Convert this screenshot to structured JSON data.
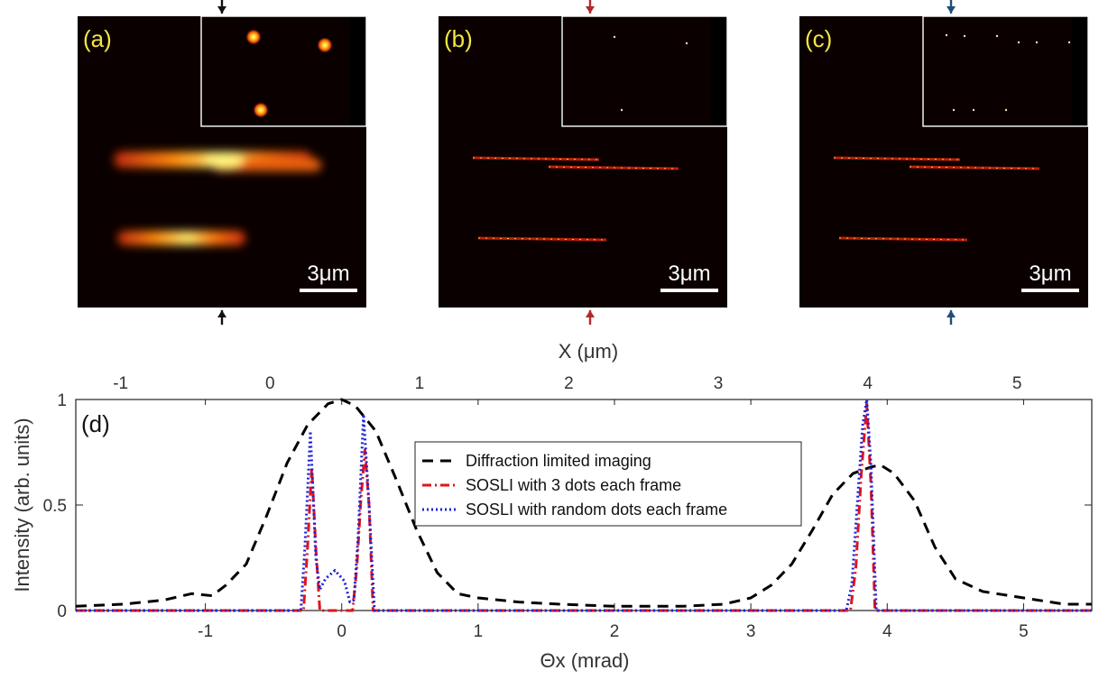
{
  "panels": [
    {
      "label": "(a)",
      "scale_bar": "3μm",
      "arrow_color": "#111111",
      "style": "blur",
      "inset_spot_count": 3
    },
    {
      "label": "(b)",
      "scale_bar": "3μm",
      "arrow_color": "#b0282a",
      "style": "sharp",
      "inset_spot_count": 3
    },
    {
      "label": "(c)",
      "scale_bar": "3μm",
      "arrow_color": "#1f4e79",
      "style": "sharp",
      "inset_spot_count": 9
    }
  ],
  "chart_data": {
    "type": "line",
    "panel_label": "(d)",
    "xlabel": "Θx (mrad)",
    "x2label": "X (μm)",
    "ylabel": "Intensity (arb. units)",
    "xlim": [
      -1.95,
      5.5
    ],
    "ylim": [
      0,
      1
    ],
    "x_ticks": [
      -1,
      0,
      1,
      2,
      3,
      4,
      5
    ],
    "x2_ticks": [
      -1,
      0,
      1,
      2,
      3,
      4,
      5
    ],
    "x2_range": [
      -1.3,
      5.5
    ],
    "y_ticks": [
      0,
      0.5,
      1
    ],
    "legend_position": "top-center",
    "series": [
      {
        "name": "Diffraction limited imaging",
        "color": "#000000",
        "dash": "dashed",
        "x": [
          -1.95,
          -1.6,
          -1.3,
          -1.1,
          -0.95,
          -0.85,
          -0.7,
          -0.55,
          -0.4,
          -0.25,
          -0.1,
          0.0,
          0.1,
          0.25,
          0.4,
          0.55,
          0.7,
          0.85,
          1.0,
          1.3,
          1.6,
          2.0,
          2.5,
          2.8,
          3.0,
          3.15,
          3.3,
          3.45,
          3.6,
          3.75,
          3.88,
          3.95,
          4.05,
          4.2,
          4.35,
          4.5,
          4.7,
          5.0,
          5.3,
          5.5
        ],
        "y": [
          0.02,
          0.03,
          0.05,
          0.08,
          0.07,
          0.12,
          0.22,
          0.45,
          0.7,
          0.88,
          0.98,
          1.0,
          0.97,
          0.85,
          0.62,
          0.38,
          0.18,
          0.08,
          0.06,
          0.04,
          0.03,
          0.02,
          0.02,
          0.03,
          0.06,
          0.12,
          0.22,
          0.38,
          0.55,
          0.65,
          0.68,
          0.69,
          0.65,
          0.52,
          0.3,
          0.15,
          0.09,
          0.06,
          0.03,
          0.03
        ]
      },
      {
        "name": "SOSLI with 3 dots each frame",
        "color": "#e0141a",
        "dash": "dashdot",
        "x": [
          -1.95,
          -0.28,
          -0.25,
          -0.22,
          -0.19,
          -0.16,
          0.08,
          0.11,
          0.14,
          0.17,
          0.2,
          0.23,
          3.73,
          3.77,
          3.81,
          3.85,
          3.88,
          3.91,
          5.5
        ],
        "y": [
          0,
          0,
          0.3,
          0.68,
          0.3,
          0,
          0,
          0.2,
          0.52,
          0.76,
          0.5,
          0,
          0,
          0.2,
          0.65,
          0.98,
          0.6,
          0,
          0
        ]
      },
      {
        "name": "SOSLI with random dots each frame",
        "color": "#1c22d6",
        "dash": "dotted",
        "x": [
          -1.95,
          -0.3,
          -0.27,
          -0.23,
          -0.19,
          -0.16,
          -0.12,
          -0.05,
          0.02,
          0.06,
          0.09,
          0.12,
          0.16,
          0.2,
          0.24,
          3.7,
          3.74,
          3.78,
          3.82,
          3.85,
          3.88,
          3.92,
          5.5
        ],
        "y": [
          0,
          0,
          0.3,
          0.85,
          0.25,
          0.1,
          0.15,
          0.19,
          0.14,
          0.04,
          0.05,
          0.35,
          0.93,
          0.5,
          0,
          0,
          0.12,
          0.5,
          0.88,
          1.0,
          0.7,
          0,
          0
        ]
      }
    ]
  }
}
